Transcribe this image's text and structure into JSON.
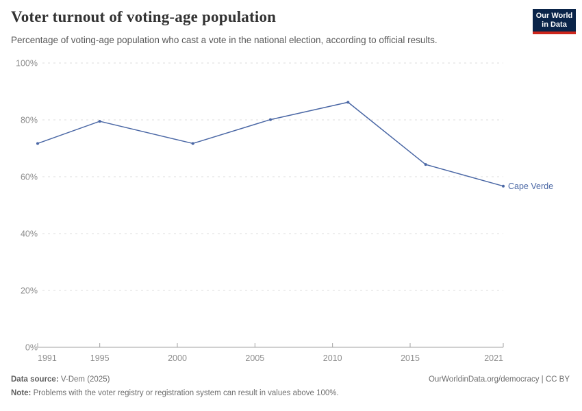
{
  "header": {
    "title": "Voter turnout of voting-age population",
    "subtitle": "Percentage of voting-age population who cast a vote in the national election, according to official results.",
    "logo": {
      "line1": "Our World",
      "line2": "in Data"
    }
  },
  "chart_data": {
    "type": "line",
    "title": "Voter turnout of voting-age population",
    "x": [
      1991,
      1995,
      2001,
      2006,
      2011,
      2016,
      2021
    ],
    "series": [
      {
        "name": "Cape Verde",
        "color": "#4a67a5",
        "values": [
          71.7,
          79.5,
          71.7,
          80.1,
          86.2,
          64.3,
          56.7
        ]
      }
    ],
    "x_ticks": [
      1991,
      1995,
      2000,
      2005,
      2010,
      2015,
      2021
    ],
    "y_tick_values": [
      0,
      20,
      40,
      60,
      80,
      100
    ],
    "y_tick_suffix": "%",
    "xlim": [
      1991,
      2021
    ],
    "ylim": [
      0,
      100
    ],
    "grid": "horizontal-dashed",
    "legend_position": "end-of-line-label"
  },
  "colors": {
    "line": "#4a67a5",
    "gridline": "#dedede",
    "axis": "#a0a0a0",
    "tick_text": "#8c8c8c",
    "logo_bg": "#0a2449",
    "logo_stripe": "#ce261c"
  },
  "footer": {
    "source_label": "Data source:",
    "source_value": " V-Dem (2025)",
    "link": "OurWorldinData.org/democracy | CC BY",
    "note_label": "Note:",
    "note_value": " Problems with the voter registry or registration system can result in values above 100%."
  }
}
